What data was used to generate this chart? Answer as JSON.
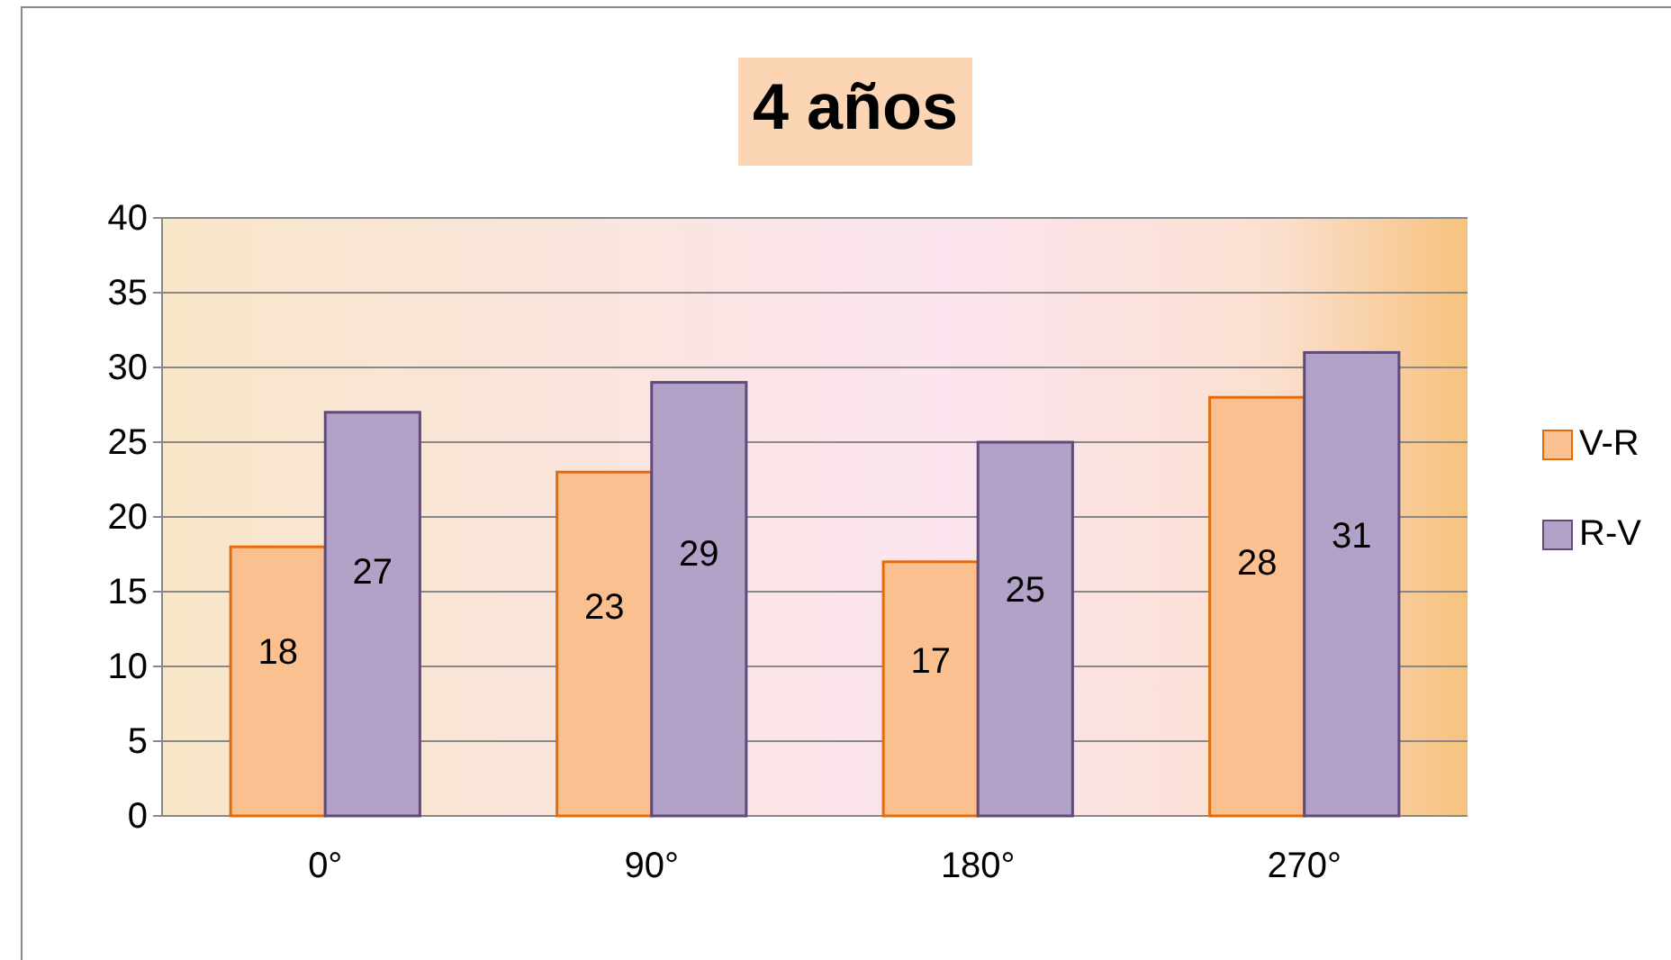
{
  "chart_data": {
    "type": "bar",
    "title": "4 años",
    "categories": [
      "0°",
      "90°",
      "180°",
      "270°"
    ],
    "series": [
      {
        "name": "V-R",
        "color": "#fac090",
        "values": [
          18,
          23,
          17,
          28
        ]
      },
      {
        "name": "R-V",
        "color": "#b3a2c7",
        "values": [
          27,
          29,
          25,
          31
        ]
      }
    ],
    "ylim": [
      0,
      40
    ],
    "yticks": [
      0,
      5,
      10,
      15,
      20,
      25,
      30,
      35,
      40
    ],
    "grid": "y",
    "legend": "right",
    "data_labels": true
  }
}
